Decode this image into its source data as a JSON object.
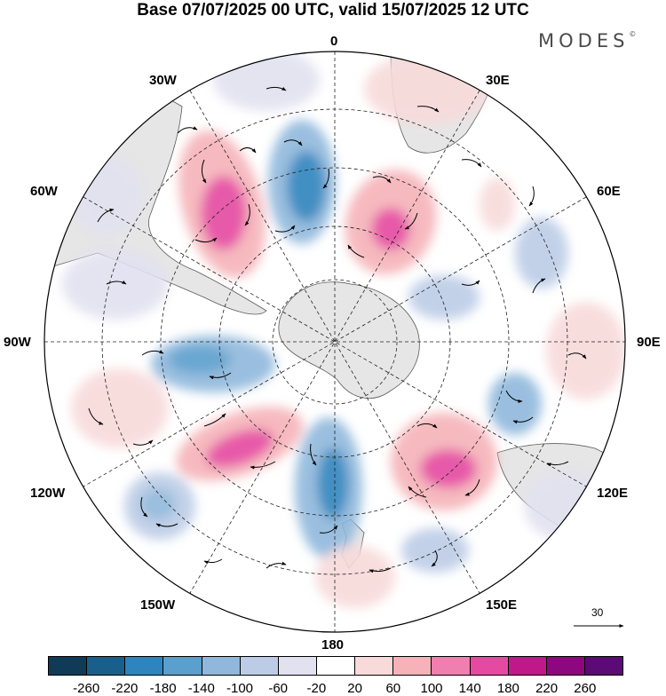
{
  "title": "Base 07/07/2025 00 UTC, valid 15/07/2025 12 UTC",
  "brand": "MODES",
  "brand_mark": "©",
  "longitude_labels": {
    "lon_0": "0",
    "lon_30e": "30E",
    "lon_60e": "60E",
    "lon_90e": "90E",
    "lon_120e": "120E",
    "lon_150e": "150E",
    "lon_180": "180",
    "lon_150w": "150W",
    "lon_120w": "120W",
    "lon_90w": "90W",
    "lon_60w": "60W",
    "lon_30w": "30W"
  },
  "reference_vector": {
    "value": "30"
  },
  "colorbar": {
    "colors": [
      "#0f3b57",
      "#185f8c",
      "#2f84bd",
      "#5a9fcd",
      "#8fb8dc",
      "#bccce6",
      "#e2e1f0",
      "#ffffff",
      "#f8dada",
      "#f5b2b8",
      "#ef7fae",
      "#e54aa0",
      "#c01889",
      "#8d087e",
      "#5c0a75"
    ],
    "ticks": [
      "-260",
      "-220",
      "-180",
      "-140",
      "-100",
      "-60",
      "-20",
      "20",
      "60",
      "100",
      "140",
      "180",
      "220",
      "260"
    ]
  }
}
